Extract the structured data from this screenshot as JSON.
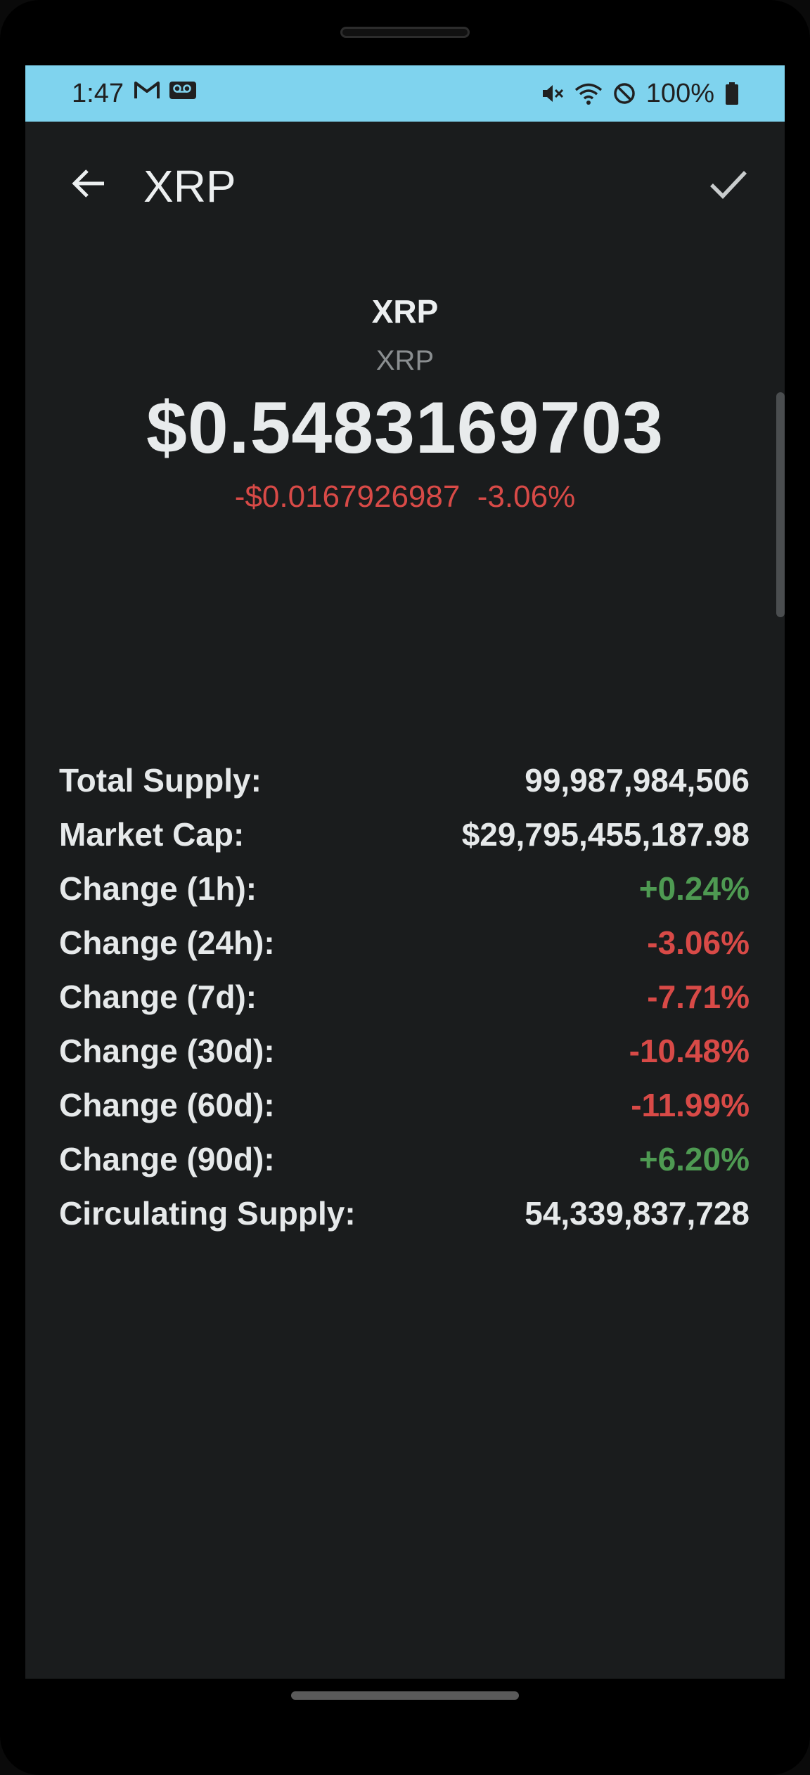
{
  "status_bar": {
    "time": "1:47",
    "battery": "100%",
    "left_icons": [
      "gmail-icon",
      "voicemail-icon"
    ],
    "right_icons": [
      "vibrate-mute-icon",
      "wifi-icon",
      "do-not-disturb-icon",
      "battery-icon"
    ]
  },
  "app_bar": {
    "title": "XRP",
    "back_icon": "arrow-back-icon",
    "confirm_icon": "check-icon"
  },
  "coin": {
    "name": "XRP",
    "symbol": "XRP",
    "price": "$0.5483169703",
    "change_abs": "-$0.0167926987",
    "change_pct": "-3.06%"
  },
  "stats": [
    {
      "label": "Total Supply:",
      "value": "99,987,984,506",
      "tone": "neutral"
    },
    {
      "label": "Market Cap:",
      "value": "$29,795,455,187.98",
      "tone": "neutral"
    },
    {
      "label": "Change (1h):",
      "value": "+0.24%",
      "tone": "pos"
    },
    {
      "label": "Change (24h):",
      "value": "-3.06%",
      "tone": "neg"
    },
    {
      "label": "Change (7d):",
      "value": "-7.71%",
      "tone": "neg"
    },
    {
      "label": "Change (30d):",
      "value": "-10.48%",
      "tone": "neg"
    },
    {
      "label": "Change (60d):",
      "value": "-11.99%",
      "tone": "neg"
    },
    {
      "label": "Change (90d):",
      "value": "+6.20%",
      "tone": "pos"
    },
    {
      "label": "Circulating Supply:",
      "value": "54,339,837,728",
      "tone": "neutral"
    }
  ],
  "colors": {
    "status_bar": "#7fd3ee",
    "background": "#1a1c1d",
    "positive": "#4e9a52",
    "negative": "#d84a47"
  }
}
